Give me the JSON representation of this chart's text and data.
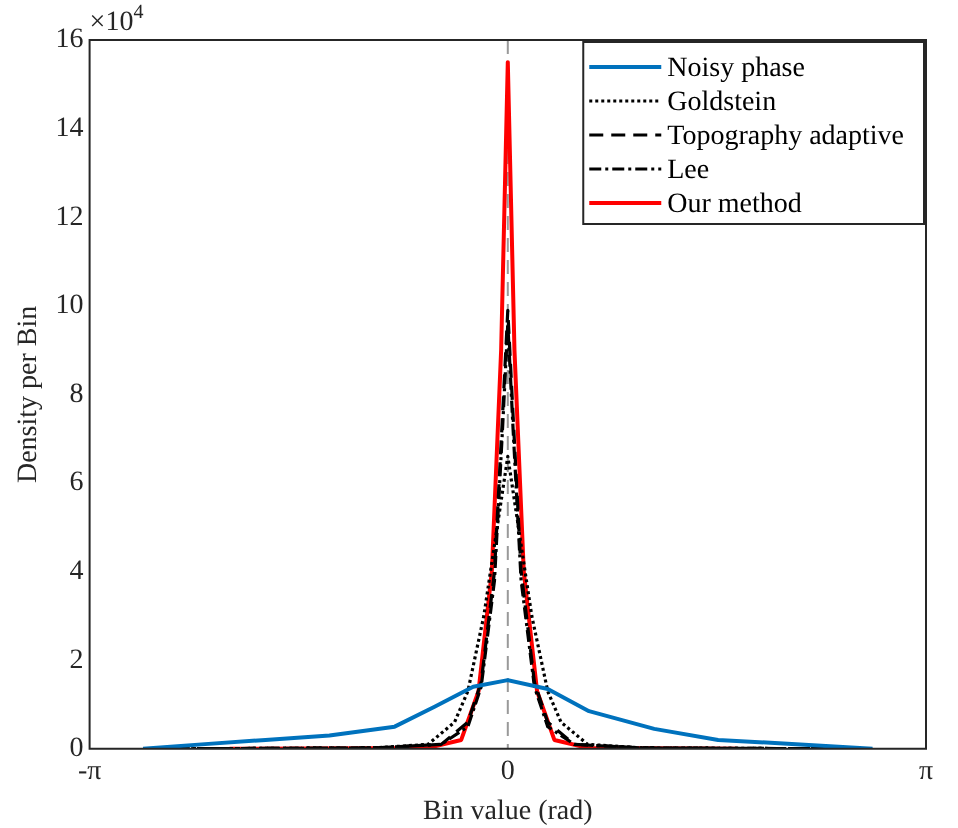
{
  "chart_data": {
    "type": "line",
    "xlabel": "Bin value (rad)",
    "ylabel": "Density per Bin",
    "annotations": [
      "×10$^{4}$"
    ],
    "xlim": [
      -3.1416,
      3.1416
    ],
    "xticks": [
      {
        "value": -3.1416,
        "label": "-π"
      },
      0,
      {
        "value": 3.1416,
        "label": "π"
      }
    ],
    "ylim": [
      0,
      16
    ],
    "yticks": [
      0,
      2,
      4,
      6,
      8,
      10,
      12,
      14,
      16
    ],
    "grid": false,
    "legend": "top right",
    "marker": "none",
    "ref_lines": [
      {
        "axis": "x",
        "value": 0,
        "label": null,
        "color": "#999999",
        "line_style": "dashed"
      }
    ],
    "series": [
      {
        "name": "Noisy phase",
        "color": "#0072bd",
        "line_style": "solid",
        "x": [
          -2.74,
          -2.3,
          -1.82,
          -1.34,
          -0.85,
          -0.55,
          -0.26,
          0,
          0.3,
          0.61,
          1.1,
          1.58,
          2.07,
          2.74
        ],
        "values": [
          0,
          0.1,
          0.2,
          0.3,
          0.5,
          0.95,
          1.4,
          1.55,
          1.35,
          0.85,
          0.45,
          0.2,
          0.12,
          0
        ]
      },
      {
        "name": "Goldstein",
        "color": "#000000",
        "line_style": "dotted",
        "x": [
          -2.5,
          -1.0,
          -0.6,
          -0.4,
          -0.3,
          -0.18,
          -0.08,
          0,
          0.08,
          0.18,
          0.3,
          0.4,
          0.6,
          1.0,
          2.5
        ],
        "values": [
          0,
          0.02,
          0.1,
          0.6,
          1.3,
          3,
          5,
          6.6,
          5,
          3,
          1.3,
          0.6,
          0.1,
          0.02,
          0
        ]
      },
      {
        "name": "Topography adaptive",
        "color": "#000000",
        "line_style": "dashed",
        "x": [
          -2.5,
          -1.0,
          -0.5,
          -0.3,
          -0.2,
          -0.1,
          -0.04,
          0,
          0.04,
          0.1,
          0.2,
          0.3,
          0.5,
          1.0,
          2.5
        ],
        "values": [
          0,
          0.02,
          0.1,
          0.6,
          1.5,
          4,
          7.5,
          9.9,
          7.5,
          4,
          1.5,
          0.6,
          0.1,
          0.02,
          0
        ]
      },
      {
        "name": "Lee",
        "color": "#000000",
        "line_style": "dashdot",
        "x": [
          -2.5,
          -1.0,
          -0.5,
          -0.3,
          -0.2,
          -0.1,
          -0.04,
          0,
          0.04,
          0.1,
          0.2,
          0.3,
          0.5,
          1.0,
          2.5
        ],
        "values": [
          0,
          0.02,
          0.1,
          0.5,
          1.4,
          3.8,
          7.2,
          9.6,
          7.2,
          3.8,
          1.4,
          0.5,
          0.1,
          0.02,
          0
        ]
      },
      {
        "name": "Our method",
        "color": "#ff0000",
        "line_style": "solid",
        "x": [
          -2.09,
          -0.6,
          -0.35,
          -0.22,
          -0.12,
          -0.05,
          0,
          0.05,
          0.12,
          0.22,
          0.35,
          0.6,
          1.72
        ],
        "values": [
          0,
          0.02,
          0.2,
          1.3,
          4,
          9,
          15.5,
          9,
          4,
          1.3,
          0.2,
          0.02,
          0
        ]
      }
    ]
  }
}
